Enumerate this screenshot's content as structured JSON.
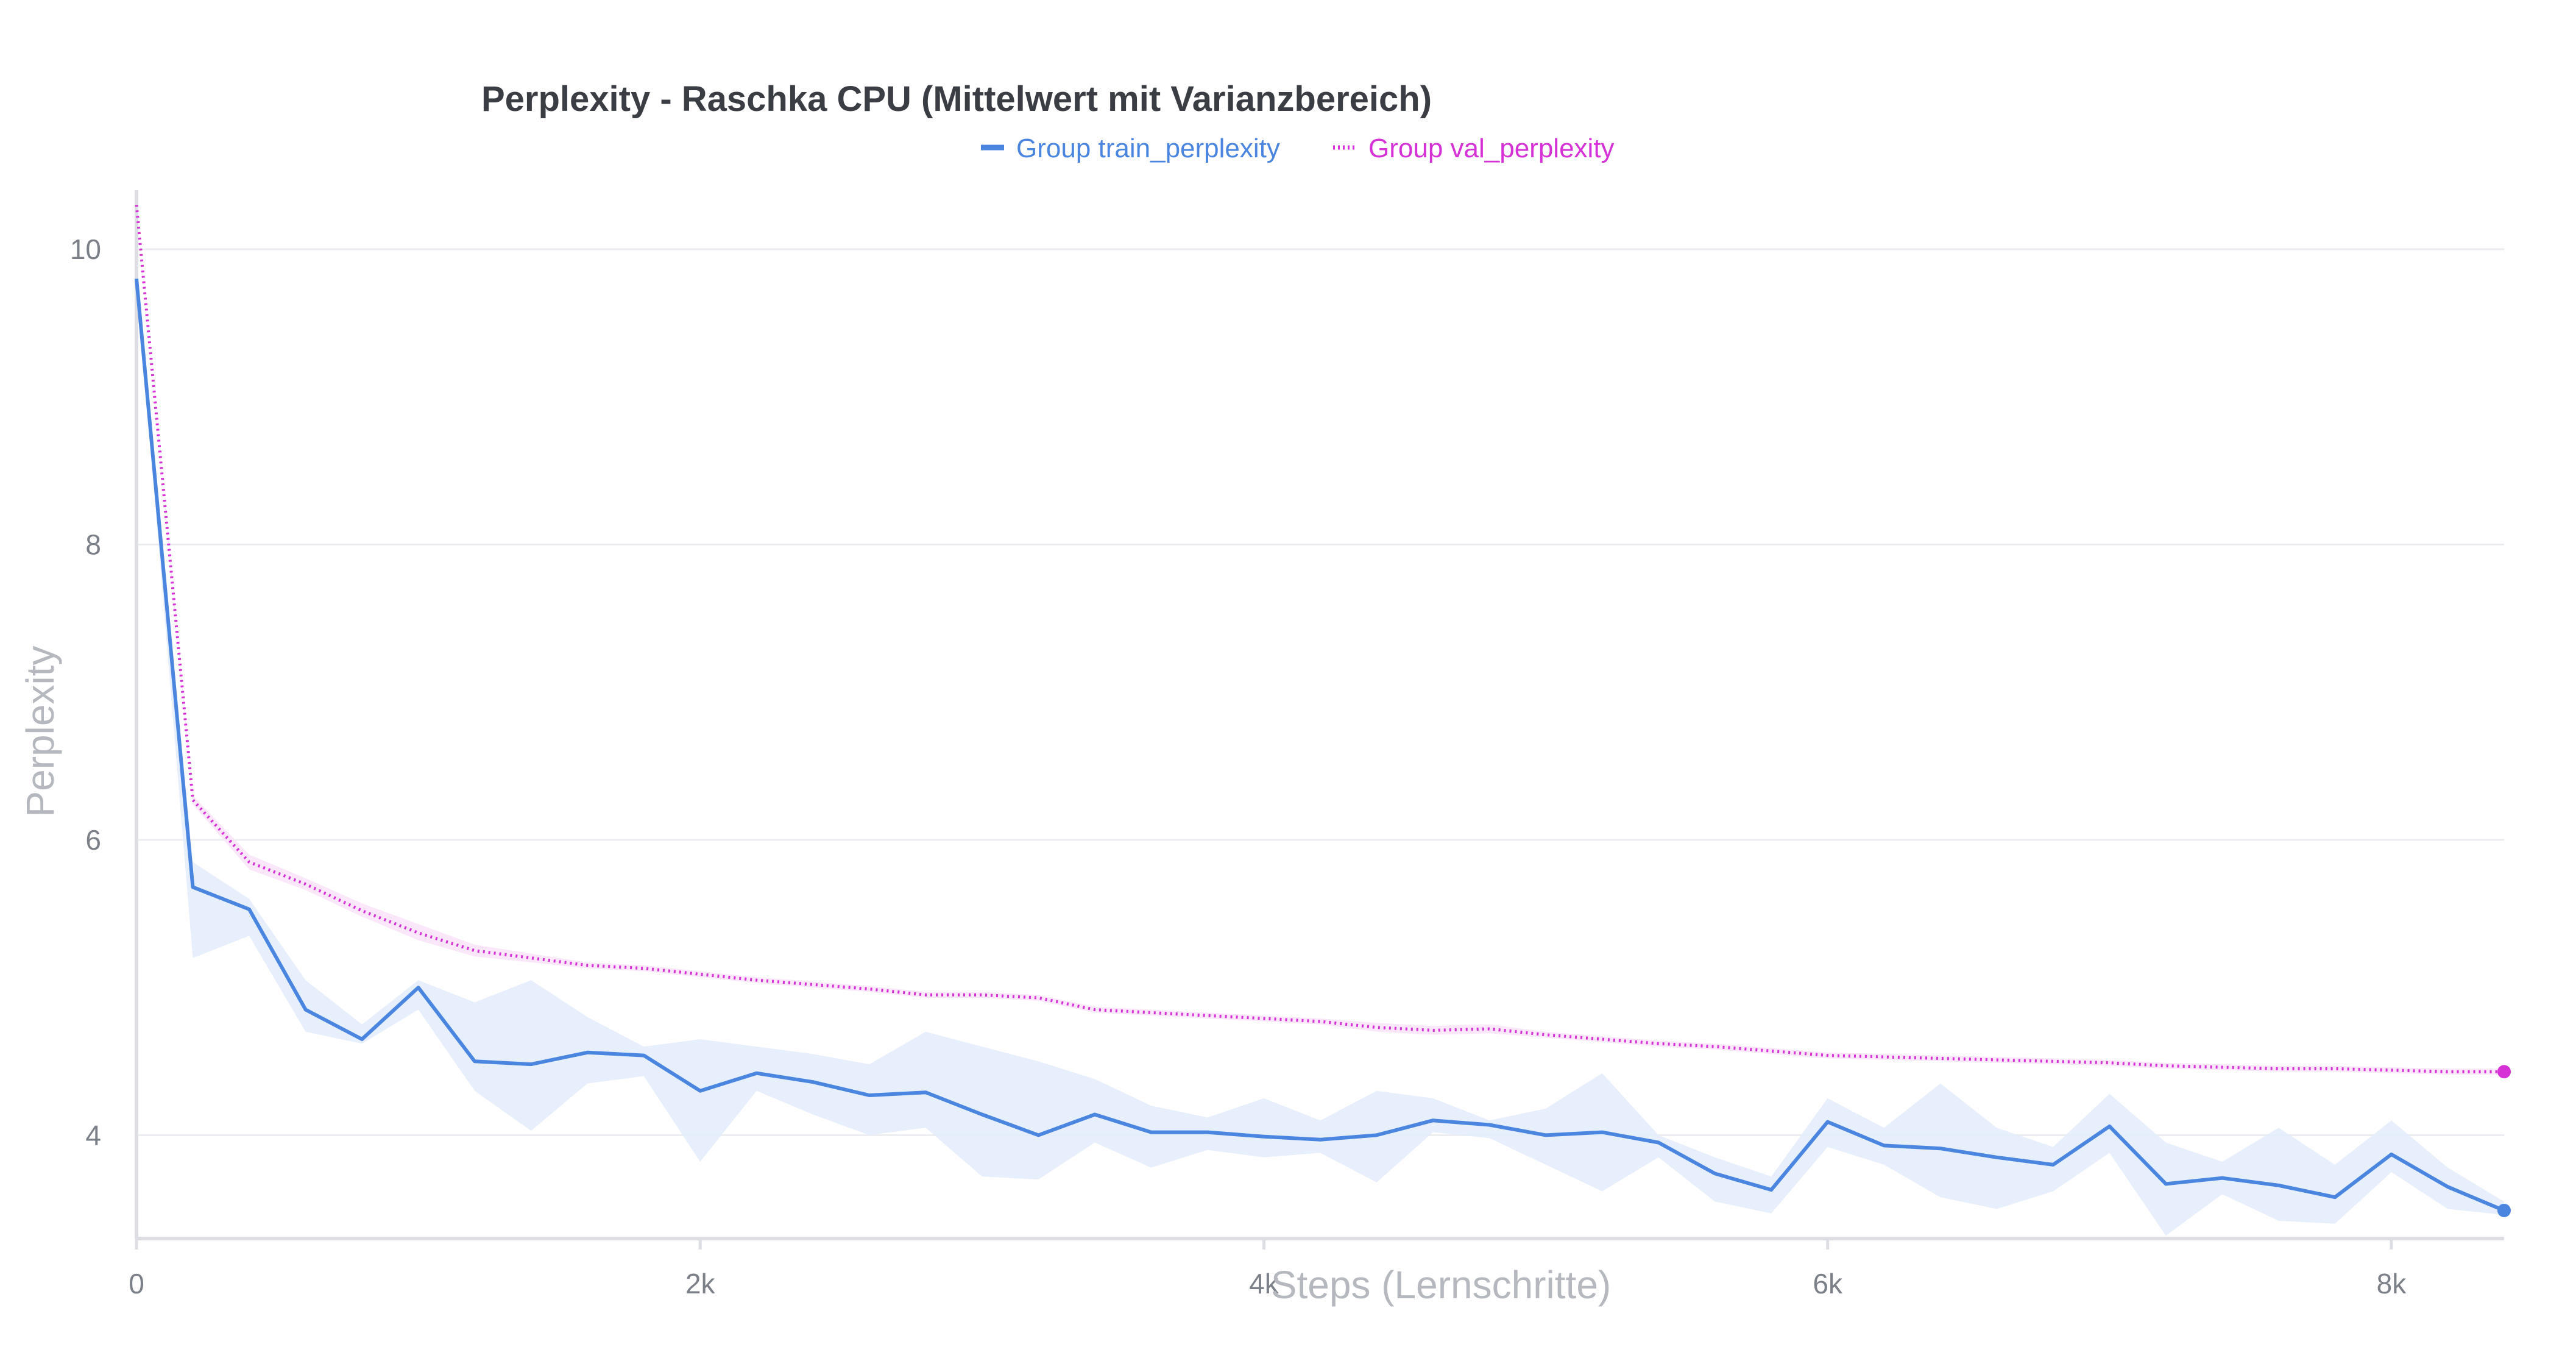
{
  "chart_data": {
    "type": "line",
    "title": "Perplexity - Raschka CPU (Mittelwert mit Varianzbereich)",
    "xlabel": "Steps (Lernschritte)",
    "ylabel": "Perplexity",
    "xlim": [
      0,
      8400
    ],
    "ylim": [
      3.3,
      10.4
    ],
    "x_ticks": [
      {
        "value": 0,
        "label": "0"
      },
      {
        "value": 2000,
        "label": "2k"
      },
      {
        "value": 4000,
        "label": "4k"
      },
      {
        "value": 6000,
        "label": "6k"
      },
      {
        "value": 8000,
        "label": "8k"
      }
    ],
    "y_ticks": [
      {
        "value": 4,
        "label": "4"
      },
      {
        "value": 6,
        "label": "6"
      },
      {
        "value": 8,
        "label": "8"
      },
      {
        "value": 10,
        "label": "10"
      }
    ],
    "grid": true,
    "legend_position": "top-center",
    "series": [
      {
        "name": "Group train_perplexity",
        "color": "#4a86e0",
        "band_color": "#e3ecfb",
        "style": "solid",
        "x": [
          0,
          200,
          400,
          600,
          800,
          1000,
          1200,
          1400,
          1600,
          1800,
          2000,
          2200,
          2400,
          2600,
          2800,
          3000,
          3200,
          3400,
          3600,
          3800,
          4000,
          4200,
          4400,
          4600,
          4800,
          5000,
          5200,
          5400,
          5600,
          5800,
          6000,
          6200,
          6400,
          6600,
          6800,
          7000,
          7200,
          7400,
          7600,
          7800,
          8000,
          8200,
          8400
        ],
        "y": [
          9.8,
          5.68,
          5.53,
          4.85,
          4.65,
          5.0,
          4.5,
          4.48,
          4.56,
          4.54,
          4.3,
          4.42,
          4.36,
          4.27,
          4.29,
          4.14,
          4.0,
          4.14,
          4.02,
          4.02,
          3.99,
          3.97,
          4.0,
          4.1,
          4.07,
          4.0,
          4.02,
          3.95,
          3.74,
          3.63,
          4.09,
          3.93,
          3.91,
          3.85,
          3.8,
          4.06,
          3.67,
          3.71,
          3.66,
          3.58,
          3.87,
          3.65,
          3.49
        ],
        "y_upper": [
          9.8,
          5.85,
          5.6,
          5.05,
          4.75,
          5.05,
          4.9,
          5.05,
          4.8,
          4.6,
          4.65,
          4.6,
          4.55,
          4.48,
          4.7,
          4.6,
          4.5,
          4.38,
          4.2,
          4.12,
          4.25,
          4.1,
          4.3,
          4.25,
          4.1,
          4.18,
          4.42,
          4.0,
          3.85,
          3.72,
          4.25,
          4.05,
          4.35,
          4.05,
          3.92,
          4.28,
          3.95,
          3.82,
          4.05,
          3.8,
          4.1,
          3.78,
          3.55
        ],
        "y_lower": [
          9.8,
          5.2,
          5.35,
          4.7,
          4.62,
          4.85,
          4.3,
          4.03,
          4.35,
          4.4,
          3.82,
          4.3,
          4.14,
          4.0,
          4.05,
          3.72,
          3.7,
          3.95,
          3.78,
          3.9,
          3.85,
          3.88,
          3.68,
          4.02,
          3.98,
          3.8,
          3.62,
          3.85,
          3.55,
          3.47,
          3.92,
          3.8,
          3.58,
          3.5,
          3.62,
          3.88,
          3.32,
          3.6,
          3.42,
          3.4,
          3.75,
          3.5,
          3.46
        ]
      },
      {
        "name": "Group val_perplexity",
        "color": "#d631d6",
        "band_color": "#f9e3f9",
        "style": "dotted",
        "x": [
          0,
          200,
          400,
          600,
          800,
          1000,
          1200,
          1400,
          1600,
          1800,
          2000,
          2200,
          2400,
          2600,
          2800,
          3000,
          3200,
          3400,
          3600,
          3800,
          4000,
          4200,
          4400,
          4600,
          4800,
          5000,
          5200,
          5400,
          5600,
          5800,
          6000,
          6200,
          6400,
          6600,
          6800,
          7000,
          7200,
          7400,
          7600,
          7800,
          8000,
          8200,
          8400
        ],
        "y": [
          10.3,
          6.27,
          5.85,
          5.7,
          5.52,
          5.37,
          5.25,
          5.2,
          5.15,
          5.13,
          5.09,
          5.05,
          5.02,
          4.99,
          4.95,
          4.95,
          4.93,
          4.85,
          4.83,
          4.81,
          4.79,
          4.77,
          4.73,
          4.71,
          4.72,
          4.68,
          4.65,
          4.62,
          4.6,
          4.57,
          4.54,
          4.53,
          4.52,
          4.51,
          4.5,
          4.49,
          4.47,
          4.46,
          4.45,
          4.45,
          4.44,
          4.43,
          4.43
        ],
        "y_upper": [
          10.3,
          6.3,
          5.9,
          5.74,
          5.57,
          5.43,
          5.29,
          5.23,
          5.17,
          5.15,
          5.11,
          5.07,
          5.04,
          5.01,
          4.97,
          4.97,
          4.95,
          4.87,
          4.85,
          4.83,
          4.81,
          4.79,
          4.76,
          4.74,
          4.75,
          4.7,
          4.67,
          4.64,
          4.62,
          4.59,
          4.56,
          4.55,
          4.54,
          4.53,
          4.52,
          4.51,
          4.49,
          4.48,
          4.47,
          4.47,
          4.46,
          4.45,
          4.45
        ],
        "y_lower": [
          10.3,
          6.24,
          5.8,
          5.66,
          5.48,
          5.32,
          5.21,
          5.17,
          5.13,
          5.11,
          5.07,
          5.03,
          5.0,
          4.97,
          4.93,
          4.93,
          4.91,
          4.83,
          4.81,
          4.79,
          4.77,
          4.75,
          4.7,
          4.68,
          4.69,
          4.66,
          4.63,
          4.6,
          4.58,
          4.55,
          4.52,
          4.51,
          4.5,
          4.49,
          4.48,
          4.47,
          4.45,
          4.44,
          4.43,
          4.43,
          4.42,
          4.41,
          4.41
        ]
      }
    ]
  }
}
